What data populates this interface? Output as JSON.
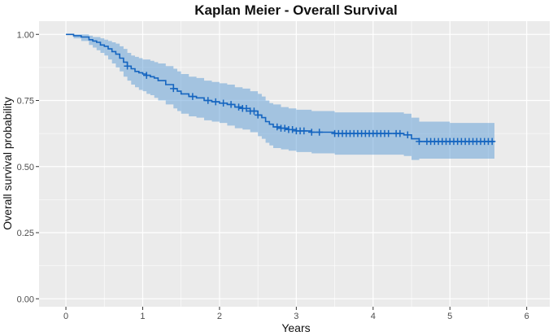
{
  "chart_data": {
    "type": "line",
    "subtype": "kaplan-meier-survival",
    "title": "Kaplan Meier - Overall Survival",
    "xlabel": "Years",
    "ylabel": "Overall survival probability",
    "xlim": [
      -0.35,
      6.3
    ],
    "ylim": [
      -0.03,
      1.05
    ],
    "x_ticks": [
      0,
      1,
      2,
      3,
      4,
      5,
      6
    ],
    "y_ticks": [
      0.0,
      0.25,
      0.5,
      0.75,
      1.0
    ],
    "x_tick_labels": [
      "0",
      "1",
      "2",
      "3",
      "4",
      "5",
      "6"
    ],
    "y_tick_labels": [
      "0.00",
      "0.25",
      "0.50",
      "0.75",
      "1.00"
    ],
    "grid": true,
    "legend": "none",
    "colors": {
      "panel_background": "#EBEBEB",
      "grid_major": "#FFFFFF",
      "line": "#1565C0",
      "confidence_band": "#5B9BD5",
      "censor_marks": "#1565C0"
    },
    "series": [
      {
        "name": "Overall survival",
        "x": [
          0,
          0.1,
          0.2,
          0.3,
          0.35,
          0.4,
          0.45,
          0.5,
          0.55,
          0.6,
          0.65,
          0.7,
          0.75,
          0.8,
          0.85,
          0.9,
          0.95,
          1.0,
          1.05,
          1.1,
          1.15,
          1.2,
          1.3,
          1.4,
          1.45,
          1.5,
          1.6,
          1.7,
          1.8,
          1.9,
          2.0,
          2.1,
          2.2,
          2.3,
          2.4,
          2.5,
          2.55,
          2.6,
          2.65,
          2.7,
          2.8,
          2.9,
          3.0,
          3.2,
          3.5,
          4.0,
          4.4,
          4.5,
          4.6,
          5.0,
          5.58
        ],
        "values": [
          1.0,
          0.995,
          0.99,
          0.98,
          0.975,
          0.97,
          0.96,
          0.955,
          0.945,
          0.935,
          0.925,
          0.91,
          0.895,
          0.88,
          0.87,
          0.86,
          0.855,
          0.85,
          0.845,
          0.84,
          0.835,
          0.825,
          0.81,
          0.795,
          0.785,
          0.775,
          0.765,
          0.76,
          0.75,
          0.745,
          0.74,
          0.735,
          0.725,
          0.72,
          0.71,
          0.695,
          0.685,
          0.67,
          0.66,
          0.65,
          0.645,
          0.64,
          0.635,
          0.63,
          0.625,
          0.625,
          0.62,
          0.605,
          0.595,
          0.595,
          0.595
        ],
        "ci_lower": [
          1.0,
          0.985,
          0.975,
          0.96,
          0.95,
          0.94,
          0.93,
          0.92,
          0.905,
          0.89,
          0.875,
          0.86,
          0.84,
          0.825,
          0.81,
          0.8,
          0.79,
          0.785,
          0.775,
          0.77,
          0.76,
          0.75,
          0.735,
          0.72,
          0.71,
          0.7,
          0.69,
          0.685,
          0.675,
          0.67,
          0.665,
          0.655,
          0.645,
          0.64,
          0.63,
          0.615,
          0.605,
          0.59,
          0.58,
          0.57,
          0.565,
          0.56,
          0.555,
          0.55,
          0.545,
          0.545,
          0.54,
          0.525,
          0.53,
          0.53,
          0.53
        ],
        "ci_upper": [
          1.0,
          1.0,
          1.0,
          0.995,
          0.99,
          0.99,
          0.985,
          0.98,
          0.975,
          0.97,
          0.965,
          0.955,
          0.945,
          0.93,
          0.92,
          0.915,
          0.91,
          0.905,
          0.905,
          0.9,
          0.895,
          0.89,
          0.88,
          0.87,
          0.86,
          0.85,
          0.84,
          0.835,
          0.825,
          0.82,
          0.815,
          0.81,
          0.8,
          0.795,
          0.785,
          0.775,
          0.765,
          0.75,
          0.74,
          0.735,
          0.725,
          0.72,
          0.715,
          0.71,
          0.705,
          0.705,
          0.7,
          0.685,
          0.67,
          0.665,
          0.665
        ],
        "censored_x": [
          0.8,
          1.05,
          1.4,
          1.65,
          1.85,
          1.95,
          2.05,
          2.15,
          2.25,
          2.3,
          2.35,
          2.4,
          2.45,
          2.5,
          2.75,
          2.8,
          2.85,
          2.9,
          2.95,
          3.0,
          3.05,
          3.1,
          3.2,
          3.3,
          3.5,
          3.55,
          3.6,
          3.65,
          3.7,
          3.75,
          3.8,
          3.85,
          3.9,
          3.95,
          4.0,
          4.05,
          4.1,
          4.15,
          4.2,
          4.3,
          4.35,
          4.45,
          4.6,
          4.7,
          4.75,
          4.8,
          4.85,
          4.9,
          4.95,
          5.0,
          5.05,
          5.1,
          5.15,
          5.2,
          5.25,
          5.3,
          5.35,
          5.4,
          5.45,
          5.5,
          5.55
        ]
      }
    ]
  }
}
